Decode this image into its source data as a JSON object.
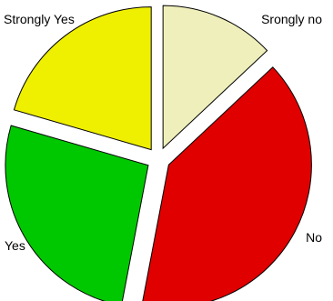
{
  "chart_data": {
    "type": "pie",
    "title": "",
    "labels": [
      "Srongly no",
      "No",
      "Yes",
      "Strongly Yes"
    ],
    "values": [
      13,
      40,
      26.5,
      20.5
    ],
    "colors": [
      "#efefbb",
      "#e00000",
      "#00c800",
      "#efef00"
    ],
    "exploded": true,
    "legend": "none"
  }
}
